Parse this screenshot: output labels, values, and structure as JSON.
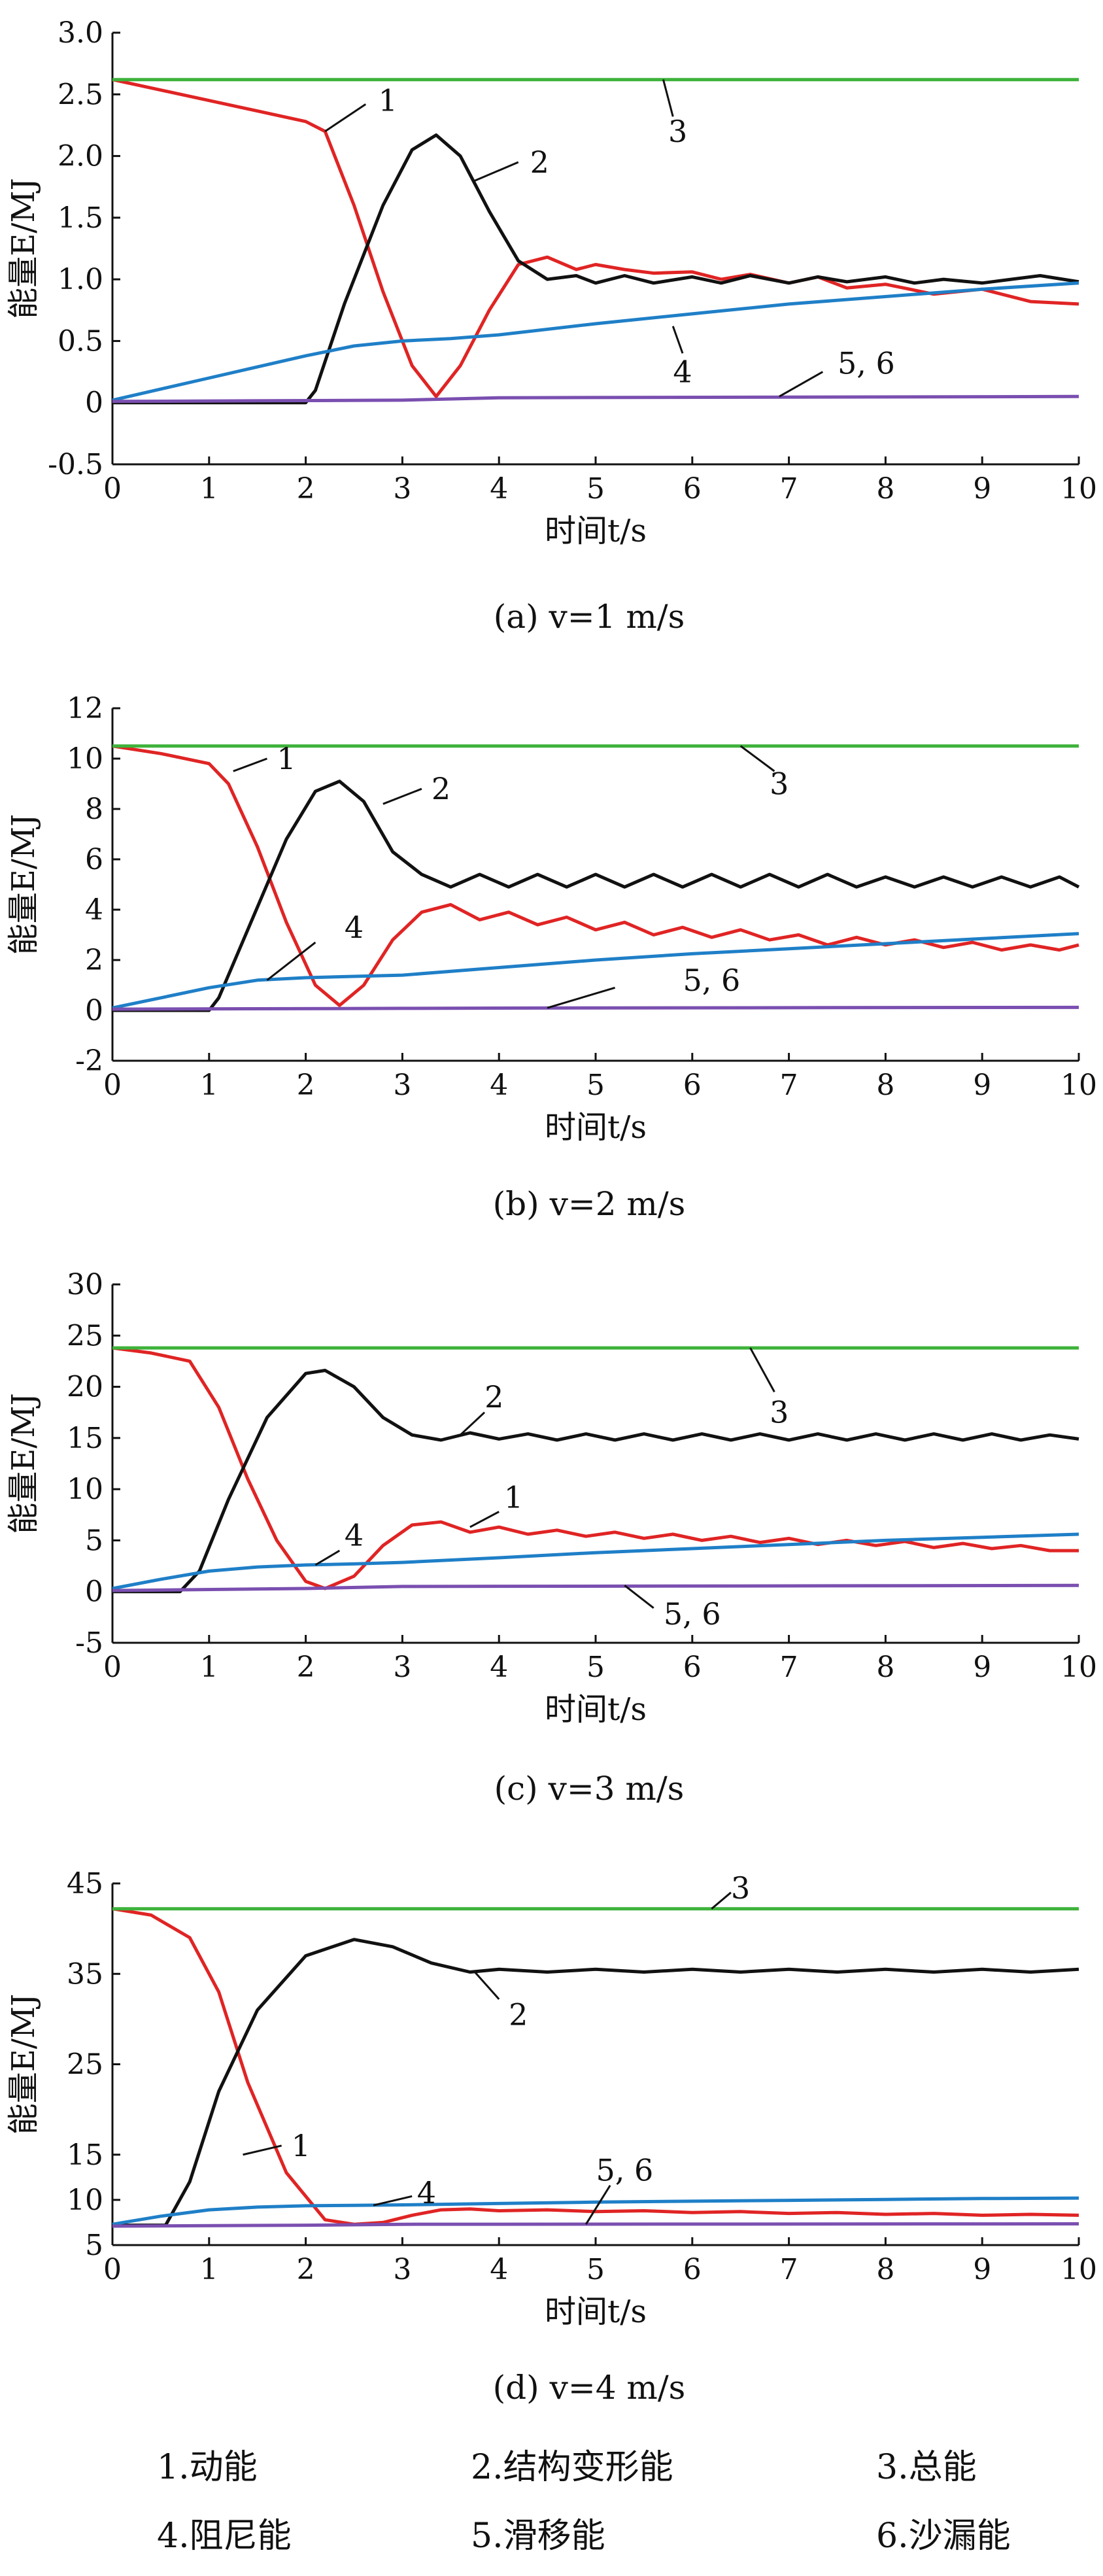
{
  "colors": {
    "kinetic": "#e02424",
    "strain": "#111111",
    "total": "#3db23a",
    "damping": "#1f7fc7",
    "slip": "#7a4fb0"
  },
  "chart_data": [
    {
      "type": "line",
      "caption": "(a) v=1 m/s",
      "xlabel": "时间t/s",
      "ylabel": "能量E/MJ",
      "xlim": [
        0,
        10
      ],
      "ylim": [
        -0.5,
        3.0
      ],
      "xticks": [
        "0",
        "1",
        "2",
        "3",
        "4",
        "5",
        "6",
        "7",
        "8",
        "9",
        "10"
      ],
      "yticks": [
        "-0.5",
        "0",
        "0.5",
        "1.0",
        "1.5",
        "2.0",
        "2.5",
        "3.0"
      ],
      "ytick_values": [
        -0.5,
        0,
        0.5,
        1.0,
        1.5,
        2.0,
        2.5,
        3.0
      ],
      "series": [
        {
          "key": "kinetic",
          "x": [
            0,
            1,
            2,
            2.2,
            2.5,
            2.8,
            3.1,
            3.35,
            3.6,
            3.9,
            4.2,
            4.5,
            4.8,
            5.0,
            5.3,
            5.6,
            6.0,
            6.3,
            6.6,
            7.0,
            7.3,
            7.6,
            8.0,
            8.5,
            9.0,
            9.5,
            10
          ],
          "y": [
            2.62,
            2.45,
            2.28,
            2.2,
            1.6,
            0.9,
            0.3,
            0.05,
            0.3,
            0.75,
            1.12,
            1.18,
            1.08,
            1.12,
            1.08,
            1.05,
            1.06,
            1.0,
            1.04,
            0.97,
            1.02,
            0.93,
            0.96,
            0.88,
            0.92,
            0.82,
            0.8
          ]
        },
        {
          "key": "strain",
          "x": [
            0,
            2.0,
            2.1,
            2.4,
            2.8,
            3.1,
            3.35,
            3.6,
            3.9,
            4.2,
            4.5,
            4.8,
            5.0,
            5.3,
            5.6,
            6.0,
            6.3,
            6.6,
            7.0,
            7.3,
            7.6,
            8.0,
            8.3,
            8.6,
            9.0,
            9.3,
            9.6,
            10
          ],
          "y": [
            0,
            0,
            0.1,
            0.8,
            1.6,
            2.05,
            2.17,
            2.0,
            1.55,
            1.15,
            1.0,
            1.03,
            0.97,
            1.03,
            0.97,
            1.02,
            0.97,
            1.03,
            0.97,
            1.02,
            0.98,
            1.02,
            0.97,
            1.0,
            0.97,
            1.0,
            1.03,
            0.98
          ]
        },
        {
          "key": "total",
          "x": [
            0,
            10
          ],
          "y": [
            2.62,
            2.62
          ]
        },
        {
          "key": "damping",
          "x": [
            0,
            1,
            2,
            2.5,
            3,
            3.5,
            4,
            5,
            6,
            7,
            8,
            9,
            10
          ],
          "y": [
            0.02,
            0.2,
            0.38,
            0.46,
            0.5,
            0.52,
            0.55,
            0.64,
            0.72,
            0.8,
            0.86,
            0.92,
            0.97
          ]
        },
        {
          "key": "slip",
          "x": [
            0,
            3,
            4,
            10
          ],
          "y": [
            0.01,
            0.02,
            0.04,
            0.05
          ]
        }
      ],
      "labels": [
        {
          "text": "1",
          "x": 2.85,
          "y": 2.45,
          "lx0": 2.2,
          "ly0": 2.2,
          "lx1": 2.62,
          "ly1": 2.42
        },
        {
          "text": "2",
          "x": 4.42,
          "y": 1.95,
          "lx0": 3.75,
          "ly0": 1.8,
          "lx1": 4.2,
          "ly1": 1.95
        },
        {
          "text": "3",
          "x": 5.85,
          "y": 2.2,
          "lx0": 5.7,
          "ly0": 2.62,
          "lx1": 5.8,
          "ly1": 2.32
        },
        {
          "text": "4",
          "x": 5.9,
          "y": 0.25,
          "lx0": 5.8,
          "ly0": 0.62,
          "lx1": 5.9,
          "ly1": 0.4
        },
        {
          "text": "5, 6",
          "x": 7.8,
          "y": 0.32,
          "lx0": 6.9,
          "ly0": 0.05,
          "lx1": 7.35,
          "ly1": 0.25
        }
      ]
    },
    {
      "type": "line",
      "caption": "(b) v=2 m/s",
      "xlabel": "时间t/s",
      "ylabel": "能量E/MJ",
      "xlim": [
        0,
        10
      ],
      "ylim": [
        -2,
        12
      ],
      "xticks": [
        "0",
        "1",
        "2",
        "3",
        "4",
        "5",
        "6",
        "7",
        "8",
        "9",
        "10"
      ],
      "yticks": [
        "-2",
        "0",
        "2",
        "4",
        "6",
        "8",
        "10",
        "12"
      ],
      "ytick_values": [
        -2,
        0,
        2,
        4,
        6,
        8,
        10,
        12
      ],
      "series": [
        {
          "key": "kinetic",
          "x": [
            0,
            0.5,
            1.0,
            1.2,
            1.5,
            1.8,
            2.1,
            2.35,
            2.6,
            2.9,
            3.2,
            3.5,
            3.8,
            4.1,
            4.4,
            4.7,
            5.0,
            5.3,
            5.6,
            5.9,
            6.2,
            6.5,
            6.8,
            7.1,
            7.4,
            7.7,
            8.0,
            8.3,
            8.6,
            8.9,
            9.2,
            9.5,
            9.8,
            10
          ],
          "y": [
            10.5,
            10.2,
            9.8,
            9.0,
            6.5,
            3.5,
            1.0,
            0.2,
            1.0,
            2.8,
            3.9,
            4.2,
            3.6,
            3.9,
            3.4,
            3.7,
            3.2,
            3.5,
            3.0,
            3.3,
            2.9,
            3.2,
            2.8,
            3.0,
            2.6,
            2.9,
            2.6,
            2.8,
            2.5,
            2.7,
            2.4,
            2.6,
            2.4,
            2.6
          ]
        },
        {
          "key": "strain",
          "x": [
            0,
            1.0,
            1.1,
            1.4,
            1.8,
            2.1,
            2.35,
            2.6,
            2.9,
            3.2,
            3.5,
            3.8,
            4.1,
            4.4,
            4.7,
            5.0,
            5.3,
            5.6,
            5.9,
            6.2,
            6.5,
            6.8,
            7.1,
            7.4,
            7.7,
            8.0,
            8.3,
            8.6,
            8.9,
            9.2,
            9.5,
            9.8,
            10
          ],
          "y": [
            0,
            0,
            0.5,
            3.2,
            6.8,
            8.7,
            9.1,
            8.3,
            6.3,
            5.4,
            4.9,
            5.4,
            4.9,
            5.4,
            4.9,
            5.4,
            4.9,
            5.4,
            4.9,
            5.4,
            4.9,
            5.4,
            4.9,
            5.4,
            4.9,
            5.3,
            4.9,
            5.3,
            4.9,
            5.3,
            4.9,
            5.3,
            4.9
          ]
        },
        {
          "key": "total",
          "x": [
            0,
            10
          ],
          "y": [
            10.5,
            10.5
          ]
        },
        {
          "key": "damping",
          "x": [
            0,
            0.5,
            1,
            1.5,
            2,
            2.5,
            3,
            4,
            5,
            6,
            7,
            8,
            9,
            10
          ],
          "y": [
            0.1,
            0.5,
            0.9,
            1.2,
            1.3,
            1.35,
            1.4,
            1.7,
            2.0,
            2.25,
            2.45,
            2.65,
            2.85,
            3.05
          ]
        },
        {
          "key": "slip",
          "x": [
            0,
            3,
            5,
            10
          ],
          "y": [
            0.05,
            0.08,
            0.1,
            0.12
          ]
        }
      ],
      "labels": [
        {
          "text": "1",
          "x": 1.8,
          "y": 10.0,
          "lx0": 1.25,
          "ly0": 9.5,
          "lx1": 1.6,
          "ly1": 10.0
        },
        {
          "text": "2",
          "x": 3.4,
          "y": 8.8,
          "lx0": 2.8,
          "ly0": 8.2,
          "lx1": 3.2,
          "ly1": 8.8
        },
        {
          "text": "3",
          "x": 6.9,
          "y": 9.0,
          "lx0": 6.5,
          "ly0": 10.5,
          "lx1": 6.85,
          "ly1": 9.5
        },
        {
          "text": "4",
          "x": 2.5,
          "y": 3.3,
          "lx0": 1.6,
          "ly0": 1.2,
          "lx1": 2.1,
          "ly1": 2.7
        },
        {
          "text": "5, 6",
          "x": 6.2,
          "y": 1.2,
          "lx0": 4.5,
          "ly0": 0.1,
          "lx1": 5.2,
          "ly1": 0.9
        }
      ]
    },
    {
      "type": "line",
      "caption": "(c) v=3 m/s",
      "xlabel": "时间t/s",
      "ylabel": "能量E/MJ",
      "xlim": [
        0,
        10
      ],
      "ylim": [
        -5,
        30
      ],
      "xticks": [
        "0",
        "1",
        "2",
        "3",
        "4",
        "5",
        "6",
        "7",
        "8",
        "9",
        "10"
      ],
      "yticks": [
        "-5",
        "0",
        "5",
        "10",
        "15",
        "20",
        "25",
        "30"
      ],
      "ytick_values": [
        -5,
        0,
        5,
        10,
        15,
        20,
        25,
        30
      ],
      "series": [
        {
          "key": "kinetic",
          "x": [
            0,
            0.4,
            0.8,
            1.1,
            1.4,
            1.7,
            2.0,
            2.2,
            2.5,
            2.8,
            3.1,
            3.4,
            3.7,
            4.0,
            4.3,
            4.6,
            4.9,
            5.2,
            5.5,
            5.8,
            6.1,
            6.4,
            6.7,
            7.0,
            7.3,
            7.6,
            7.9,
            8.2,
            8.5,
            8.8,
            9.1,
            9.4,
            9.7,
            10
          ],
          "y": [
            23.8,
            23.3,
            22.5,
            18.0,
            11.0,
            5.0,
            1.0,
            0.3,
            1.5,
            4.5,
            6.5,
            6.8,
            5.8,
            6.3,
            5.6,
            6.0,
            5.4,
            5.8,
            5.2,
            5.6,
            5.0,
            5.4,
            4.8,
            5.2,
            4.6,
            5.0,
            4.5,
            4.9,
            4.3,
            4.7,
            4.2,
            4.5,
            4.0,
            4.0
          ]
        },
        {
          "key": "strain",
          "x": [
            0,
            0.7,
            0.9,
            1.2,
            1.6,
            2.0,
            2.2,
            2.5,
            2.8,
            3.1,
            3.4,
            3.7,
            4.0,
            4.3,
            4.6,
            4.9,
            5.2,
            5.5,
            5.8,
            6.1,
            6.4,
            6.7,
            7.0,
            7.3,
            7.6,
            7.9,
            8.2,
            8.5,
            8.8,
            9.1,
            9.4,
            9.7,
            10
          ],
          "y": [
            0,
            0,
            2,
            9,
            17,
            21.3,
            21.6,
            20.0,
            17.0,
            15.3,
            14.8,
            15.5,
            14.9,
            15.4,
            14.8,
            15.4,
            14.8,
            15.4,
            14.8,
            15.4,
            14.8,
            15.4,
            14.8,
            15.4,
            14.8,
            15.4,
            14.8,
            15.4,
            14.8,
            15.4,
            14.8,
            15.3,
            14.9
          ]
        },
        {
          "key": "total",
          "x": [
            0,
            10
          ],
          "y": [
            23.8,
            23.8
          ]
        },
        {
          "key": "damping",
          "x": [
            0,
            0.5,
            1,
            1.5,
            2,
            2.5,
            3,
            4,
            5,
            6,
            7,
            8,
            9,
            10
          ],
          "y": [
            0.3,
            1.2,
            2.0,
            2.4,
            2.6,
            2.7,
            2.85,
            3.3,
            3.8,
            4.2,
            4.6,
            5.0,
            5.3,
            5.6
          ]
        },
        {
          "key": "slip",
          "x": [
            0,
            2,
            3,
            10
          ],
          "y": [
            0.1,
            0.3,
            0.5,
            0.6
          ]
        }
      ],
      "labels": [
        {
          "text": "1",
          "x": 4.15,
          "y": 9.2,
          "lx0": 3.7,
          "ly0": 6.3,
          "lx1": 4.0,
          "ly1": 7.8
        },
        {
          "text": "2",
          "x": 3.95,
          "y": 19.0,
          "lx0": 3.6,
          "ly0": 15.3,
          "lx1": 3.85,
          "ly1": 17.5
        },
        {
          "text": "3",
          "x": 6.9,
          "y": 17.5,
          "lx0": 6.6,
          "ly0": 23.8,
          "lx1": 6.85,
          "ly1": 19.5
        },
        {
          "text": "4",
          "x": 2.5,
          "y": 5.5,
          "lx0": 2.1,
          "ly0": 2.6,
          "lx1": 2.35,
          "ly1": 4.0
        },
        {
          "text": "5, 6",
          "x": 6.0,
          "y": -2.2,
          "lx0": 5.3,
          "ly0": 0.6,
          "lx1": 5.6,
          "ly1": -1.6
        }
      ]
    },
    {
      "type": "line",
      "caption": "(d) v=4 m/s",
      "xlabel": "时间t/s",
      "ylabel": "能量E/MJ",
      "xlim": [
        0,
        10
      ],
      "ylim": [
        5,
        45
      ],
      "xticks": [
        "0",
        "1",
        "2",
        "3",
        "4",
        "5",
        "6",
        "7",
        "8",
        "9",
        "10"
      ],
      "yticks": [
        "5",
        "10",
        "15",
        "25",
        "35",
        "45"
      ],
      "ytick_values": [
        5,
        10,
        15,
        25,
        35,
        45
      ],
      "series": [
        {
          "key": "kinetic",
          "x": [
            0,
            0.4,
            0.8,
            1.1,
            1.4,
            1.8,
            2.2,
            2.5,
            2.8,
            3.1,
            3.4,
            3.7,
            4.0,
            4.5,
            5.0,
            5.5,
            6.0,
            6.5,
            7.0,
            7.5,
            8.0,
            8.5,
            9.0,
            9.5,
            10
          ],
          "y": [
            42.2,
            41.5,
            39.0,
            33.0,
            23.0,
            13.0,
            7.8,
            7.3,
            7.5,
            8.3,
            8.9,
            9.0,
            8.8,
            8.9,
            8.7,
            8.8,
            8.6,
            8.7,
            8.5,
            8.6,
            8.4,
            8.5,
            8.3,
            8.4,
            8.3
          ]
        },
        {
          "key": "strain",
          "x": [
            0,
            0.55,
            0.8,
            1.1,
            1.5,
            2.0,
            2.5,
            2.9,
            3.3,
            3.7,
            4.0,
            4.5,
            5.0,
            5.5,
            6.0,
            6.5,
            7.0,
            7.5,
            8.0,
            8.5,
            9.0,
            9.5,
            10
          ],
          "y": [
            7.2,
            7.2,
            12,
            22,
            31,
            37,
            38.8,
            38.0,
            36.2,
            35.2,
            35.5,
            35.2,
            35.5,
            35.2,
            35.5,
            35.2,
            35.5,
            35.2,
            35.5,
            35.2,
            35.5,
            35.2,
            35.5
          ]
        },
        {
          "key": "total",
          "x": [
            0,
            10
          ],
          "y": [
            42.2,
            42.2
          ]
        },
        {
          "key": "damping",
          "x": [
            0,
            0.5,
            1,
            1.5,
            2,
            2.5,
            3,
            4,
            5,
            6,
            7,
            8,
            9,
            10
          ],
          "y": [
            7.3,
            8.2,
            8.9,
            9.2,
            9.35,
            9.4,
            9.45,
            9.6,
            9.75,
            9.85,
            9.95,
            10.05,
            10.15,
            10.2
          ]
        },
        {
          "key": "slip",
          "x": [
            0,
            2,
            3,
            10
          ],
          "y": [
            7.1,
            7.2,
            7.3,
            7.35
          ]
        }
      ],
      "labels": [
        {
          "text": "1",
          "x": 1.95,
          "y": 16.0,
          "lx0": 1.35,
          "ly0": 15.0,
          "lx1": 1.75,
          "ly1": 16.0
        },
        {
          "text": "2",
          "x": 4.2,
          "y": 30.5,
          "lx0": 3.75,
          "ly0": 35.2,
          "lx1": 4.0,
          "ly1": 32.2
        },
        {
          "text": "3",
          "x": 6.5,
          "y": 44.5,
          "lx0": 6.2,
          "ly0": 42.2,
          "lx1": 6.4,
          "ly1": 44.0
        },
        {
          "text": "4",
          "x": 3.25,
          "y": 10.8,
          "lx0": 2.7,
          "ly0": 9.4,
          "lx1": 3.1,
          "ly1": 10.4
        },
        {
          "text": "5, 6",
          "x": 5.3,
          "y": 13.3,
          "lx0": 4.9,
          "ly0": 7.3,
          "lx1": 5.15,
          "ly1": 11.6
        }
      ]
    }
  ],
  "legend": [
    {
      "text": "1.动能"
    },
    {
      "text": "2.结构变形能"
    },
    {
      "text": "3.总能"
    },
    {
      "text": "4.阻尼能"
    },
    {
      "text": "5.滑移能"
    },
    {
      "text": "6.沙漏能"
    }
  ]
}
